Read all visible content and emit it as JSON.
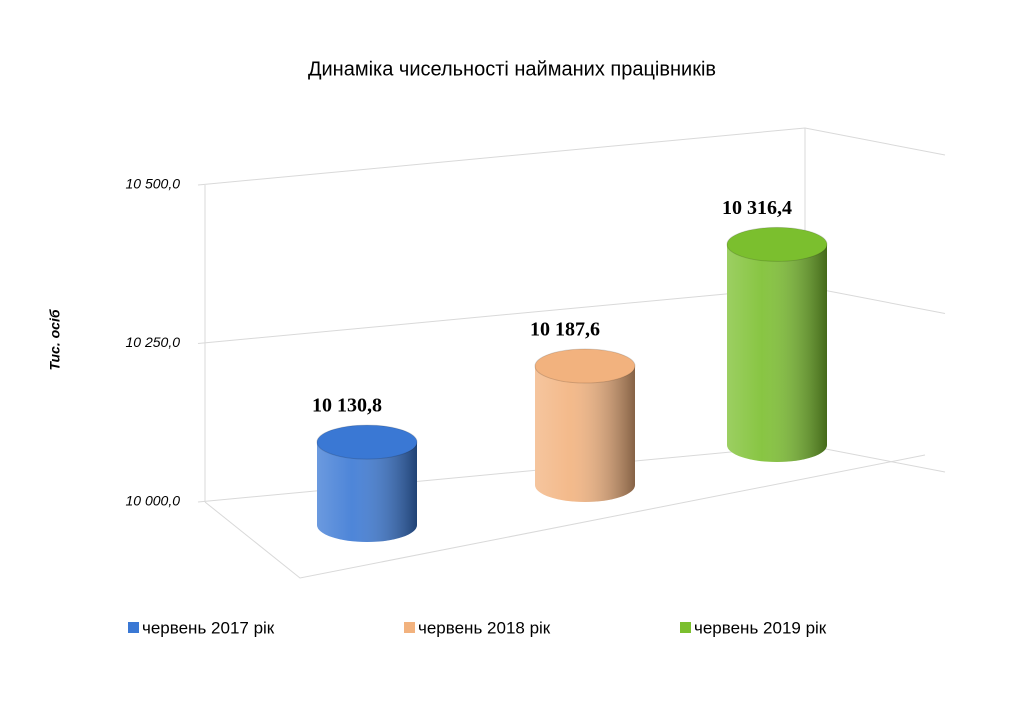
{
  "chart_data": {
    "type": "bar",
    "title": "Динаміка чисельності найманих працівників",
    "y_label": "Тис. осіб",
    "categories": [
      null
    ],
    "series": [
      {
        "name": "червень 2017 рік",
        "color": "#3a78d4",
        "values": [
          10130.8
        ],
        "value_labels": [
          "10 130,8"
        ]
      },
      {
        "name": "червень 2018 рік",
        "color": "#f2b27e",
        "values": [
          10187.6
        ],
        "value_labels": [
          "10 187,6"
        ]
      },
      {
        "name": "червень 2019 рік",
        "color": "#7bbf2e",
        "values": [
          10316.4
        ],
        "value_labels": [
          "10 316,4"
        ]
      }
    ],
    "ylim": [
      10000,
      10500
    ],
    "yticks": [
      {
        "value": 10000,
        "label": "10 000,0"
      },
      {
        "value": 10250,
        "label": "10 250,0"
      },
      {
        "value": 10500,
        "label": "10 500,0"
      }
    ],
    "grid": true,
    "legend": "bottom"
  }
}
